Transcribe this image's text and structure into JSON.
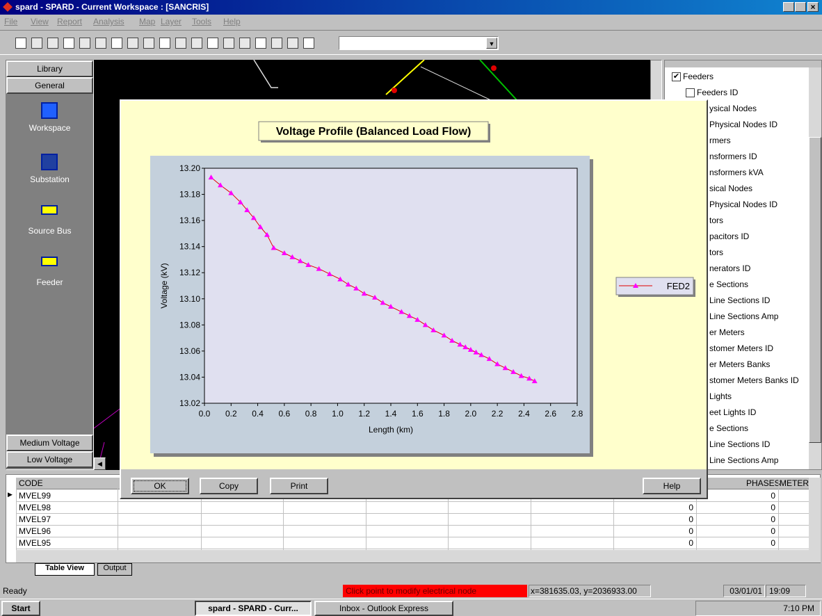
{
  "window_title": "spard - SPARD - Current Workspace : [SANCRIS]",
  "menu": [
    "File",
    "View",
    "Report",
    "Analysis",
    "Map",
    "Layer",
    "Tools",
    "Help"
  ],
  "left_panel": {
    "tabs": [
      "Library",
      "General"
    ],
    "items": [
      "Workspace",
      "Substation",
      "Source Bus",
      "Feeder"
    ],
    "bottom_tabs": [
      "Medium Voltage",
      "Low Voltage"
    ]
  },
  "tree": [
    "Feeders",
    "Feeders ID",
    "ysical Nodes",
    "Physical Nodes ID",
    "rmers",
    "nsformers ID",
    "nsformers kVA",
    "sical Nodes",
    "Physical Nodes ID",
    "tors",
    "pacitors ID",
    "tors",
    "nerators ID",
    "e Sections",
    "Line Sections ID",
    "Line Sections Amp",
    "er Meters",
    "stomer Meters ID",
    "er Meters Banks",
    "stomer Meters Banks ID",
    "Lights",
    "eet Lights ID",
    "e Sections",
    "Line Sections ID",
    "Line Sections Amp"
  ],
  "dialog": {
    "buttons": [
      "OK",
      "Copy",
      "Print",
      "Help"
    ]
  },
  "chart_data": {
    "type": "line",
    "title": "Voltage Profile (Balanced Load Flow)",
    "x_label": "Length (km)",
    "y_label": "Voltage (kV)",
    "x": [
      0.05,
      0.12,
      0.2,
      0.27,
      0.32,
      0.37,
      0.42,
      0.47,
      0.52,
      0.6,
      0.66,
      0.72,
      0.78,
      0.86,
      0.94,
      1.02,
      1.08,
      1.14,
      1.2,
      1.28,
      1.34,
      1.4,
      1.48,
      1.54,
      1.6,
      1.66,
      1.72,
      1.8,
      1.86,
      1.92,
      1.96,
      2.0,
      2.04,
      2.08,
      2.14,
      2.2,
      2.26,
      2.32,
      2.38,
      2.44,
      2.48
    ],
    "series": [
      {
        "name": "FED2",
        "color": "#ff00ff",
        "line_color": "#e00000",
        "values": [
          13.193,
          13.187,
          13.181,
          13.174,
          13.168,
          13.162,
          13.155,
          13.149,
          13.139,
          13.135,
          13.132,
          13.129,
          13.126,
          13.123,
          13.119,
          13.115,
          13.111,
          13.108,
          13.104,
          13.101,
          13.097,
          13.094,
          13.09,
          13.087,
          13.084,
          13.08,
          13.076,
          13.072,
          13.068,
          13.065,
          13.063,
          13.061,
          13.059,
          13.057,
          13.054,
          13.05,
          13.047,
          13.044,
          13.041,
          13.039,
          13.037
        ]
      }
    ],
    "xlim": [
      0,
      2.8
    ],
    "ylim": [
      13.02,
      13.2
    ],
    "xticks": [
      {
        "value": 0,
        "label": "0.0"
      },
      0.2,
      0.4,
      0.6,
      0.8,
      {
        "value": 1,
        "label": "1.0"
      },
      1.2,
      1.4,
      1.6,
      1.8,
      {
        "value": 2,
        "label": "2.0"
      },
      2.2,
      2.4,
      2.6,
      2.8
    ],
    "yticks": [
      13.02,
      13.04,
      13.06,
      13.08,
      {
        "value": 13.1,
        "label": "13.10"
      },
      13.12,
      13.14,
      13.16,
      13.18,
      {
        "value": 13.2,
        "label": "13.20"
      }
    ],
    "plot_background": "#e0e0f0",
    "panel_background": "#c4d0dc"
  },
  "table": {
    "columns": [
      "CODE",
      "PHASES",
      "METER"
    ],
    "rows": [
      {
        "code": "MVEL99",
        "phases": "0"
      },
      {
        "code": "MVEL98",
        "value": "0",
        "phases": "0"
      },
      {
        "code": "MVEL97",
        "value": "0",
        "phases": "0"
      },
      {
        "code": "MVEL96",
        "value": "0",
        "phases": "0"
      },
      {
        "code": "MVEL95",
        "value": "0",
        "phases": "0"
      }
    ]
  },
  "tabs": [
    "Table View",
    "Output"
  ],
  "status": {
    "ready": "Ready",
    "message": "Click point to modify electrical node",
    "coords": "x=381635.03, y=2036933.00",
    "date": "03/01/01",
    "time": "19:09"
  },
  "taskbar": {
    "start": "Start",
    "tasks": [
      "spard - SPARD - Curr...",
      "Inbox - Outlook Express"
    ],
    "clock": "7:10 PM"
  }
}
